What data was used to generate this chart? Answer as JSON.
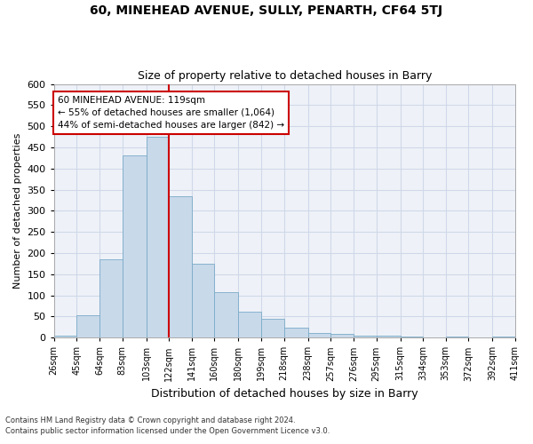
{
  "title_line1": "60, MINEHEAD AVENUE, SULLY, PENARTH, CF64 5TJ",
  "title_line2": "Size of property relative to detached houses in Barry",
  "xlabel": "Distribution of detached houses by size in Barry",
  "ylabel": "Number of detached properties",
  "bar_color": "#c8d9ea",
  "bar_edge_color": "#7aaac8",
  "grid_color": "#d0d8e8",
  "background_color": "#eef2f8",
  "property_line_x": 122,
  "property_line_color": "#cc0000",
  "annotation_text": "60 MINEHEAD AVENUE: 119sqm\n← 55% of detached houses are smaller (1,064)\n44% of semi-detached houses are larger (842) →",
  "annotation_box_color": "#ffffff",
  "annotation_box_edge": "#cc0000",
  "footnote1": "Contains HM Land Registry data © Crown copyright and database right 2024.",
  "footnote2": "Contains public sector information licensed under the Open Government Licence v3.0.",
  "bin_edges": [
    26,
    45,
    64,
    83,
    103,
    122,
    141,
    160,
    180,
    199,
    218,
    238,
    257,
    276,
    295,
    315,
    334,
    353,
    372,
    392,
    411
  ],
  "bin_labels": [
    "26sqm",
    "45sqm",
    "64sqm",
    "83sqm",
    "103sqm",
    "122sqm",
    "141sqm",
    "160sqm",
    "180sqm",
    "199sqm",
    "218sqm",
    "238sqm",
    "257sqm",
    "276sqm",
    "295sqm",
    "315sqm",
    "334sqm",
    "353sqm",
    "372sqm",
    "392sqm",
    "411sqm"
  ],
  "bar_heights": [
    5,
    52,
    185,
    430,
    475,
    335,
    175,
    107,
    62,
    45,
    23,
    10,
    9,
    5,
    5,
    2,
    1,
    2,
    1,
    3
  ],
  "ylim": [
    0,
    600
  ],
  "yticks": [
    0,
    50,
    100,
    150,
    200,
    250,
    300,
    350,
    400,
    450,
    500,
    550,
    600
  ]
}
